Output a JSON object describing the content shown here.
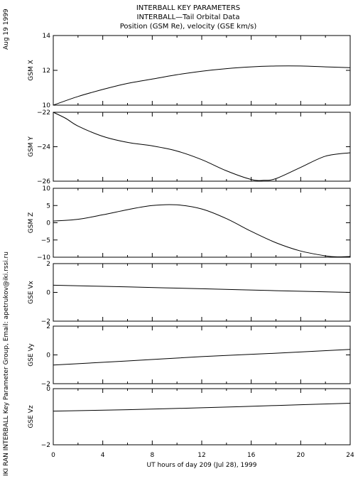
{
  "header": {
    "title": "INTERBALL KEY PARAMETERS",
    "subtitle": "INTERBALL—Tail Orbital Data",
    "description": "Position (GSM Re), velocity (GSE km/s)"
  },
  "side_text": {
    "date": "Aug 19 1999",
    "credit": "IKI RAN INTERBALL Key Parameter Group, Email: apetrukov@iki.rssi.ru"
  },
  "colors": {
    "line": "#000000",
    "background": "#ffffff"
  },
  "chart_data": [
    {
      "type": "line",
      "ylabel": "GSM X",
      "xlim": [
        0,
        24
      ],
      "ylim": [
        10,
        14
      ],
      "yticks": [
        "10",
        "12",
        "14"
      ],
      "yticks_values": [
        10,
        12,
        14
      ],
      "x": [
        0,
        2,
        4,
        6,
        8,
        10,
        12,
        14,
        16,
        18,
        20,
        22,
        24
      ],
      "values": [
        10.0,
        10.5,
        10.9,
        11.25,
        11.5,
        11.75,
        11.95,
        12.1,
        12.2,
        12.25,
        12.25,
        12.2,
        12.15
      ]
    },
    {
      "type": "line",
      "ylabel": "GSM Y",
      "xlim": [
        0,
        24
      ],
      "ylim": [
        -26,
        -22
      ],
      "yticks": [
        "−22",
        "−24",
        "−26"
      ],
      "yticks_values": [
        -22,
        -24,
        -26
      ],
      "x": [
        0,
        1,
        2,
        4,
        6,
        8,
        10,
        12,
        14,
        16,
        17,
        18,
        20,
        22,
        24
      ],
      "values": [
        -22.0,
        -22.35,
        -22.8,
        -23.4,
        -23.75,
        -23.95,
        -24.25,
        -24.75,
        -25.4,
        -25.9,
        -25.95,
        -25.85,
        -25.2,
        -24.55,
        -24.35
      ]
    },
    {
      "type": "line",
      "ylabel": "GSM Z",
      "xlim": [
        0,
        24
      ],
      "ylim": [
        -10,
        10
      ],
      "yticks": [
        "−10",
        "−5",
        "0",
        "5",
        "10"
      ],
      "yticks_values": [
        -10,
        -5,
        0,
        5,
        10
      ],
      "x": [
        0,
        2,
        4,
        6,
        8,
        10,
        12,
        14,
        16,
        18,
        20,
        22,
        23,
        24
      ],
      "values": [
        0.5,
        1.0,
        2.3,
        3.8,
        5.0,
        5.2,
        4.0,
        1.2,
        -2.5,
        -5.8,
        -8.2,
        -9.6,
        -9.9,
        -9.8
      ]
    },
    {
      "type": "line",
      "ylabel": "GSE Vx",
      "xlim": [
        0,
        24
      ],
      "ylim": [
        -2,
        2
      ],
      "yticks": [
        "2",
        "0",
        "−2"
      ],
      "yticks_values": [
        2,
        0,
        -2
      ],
      "x": [
        0,
        6,
        12,
        18,
        24
      ],
      "values": [
        0.5,
        0.38,
        0.25,
        0.12,
        0.0
      ]
    },
    {
      "type": "line",
      "ylabel": "GSE Vy",
      "xlim": [
        0,
        24
      ],
      "ylim": [
        -2,
        2
      ],
      "yticks": [
        "2",
        "0",
        "−2"
      ],
      "yticks_values": [
        2,
        0,
        -2
      ],
      "x": [
        0,
        6,
        12,
        18,
        24
      ],
      "values": [
        -0.7,
        -0.42,
        -0.12,
        0.12,
        0.38
      ]
    },
    {
      "type": "line",
      "ylabel": "GSE Vz",
      "xlim": [
        0,
        24
      ],
      "ylim": [
        -2,
        0
      ],
      "yticks": [
        "0",
        "−2"
      ],
      "yticks_values": [
        0,
        -2
      ],
      "x": [
        0,
        6,
        12,
        18,
        24
      ],
      "values": [
        -0.8,
        -0.75,
        -0.68,
        -0.6,
        -0.52
      ]
    }
  ],
  "x_axis": {
    "label": "UT hours of day 209 (Jul 28), 1999",
    "ticks": [
      "0",
      "4",
      "8",
      "12",
      "16",
      "20",
      "24"
    ],
    "tick_values": [
      0,
      4,
      8,
      12,
      16,
      20,
      24
    ],
    "minor_step": 2
  }
}
